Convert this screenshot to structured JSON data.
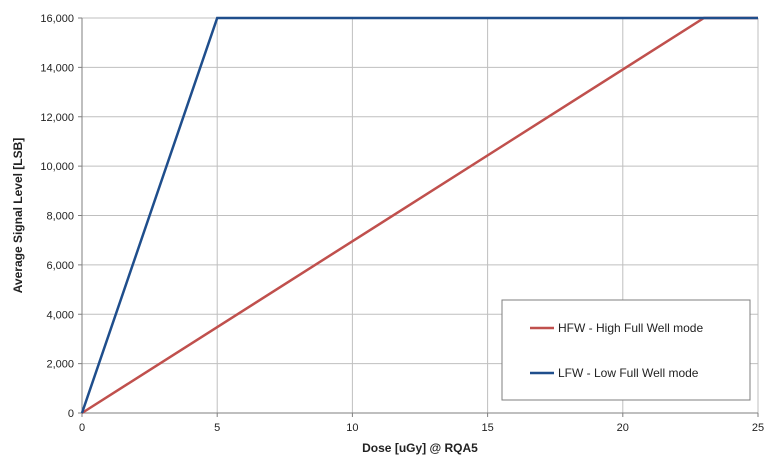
{
  "chart_data": {
    "type": "line",
    "xlabel": "Dose [uGy] @ RQA5",
    "ylabel": "Average Signal Level [LSB]",
    "xlim": [
      0,
      25
    ],
    "ylim": [
      0,
      16000
    ],
    "x_ticks": [
      0,
      5,
      10,
      15,
      20,
      25
    ],
    "y_ticks": [
      0,
      2000,
      4000,
      6000,
      8000,
      10000,
      12000,
      14000,
      16000
    ],
    "x_tick_labels": [
      "0",
      "5",
      "10",
      "15",
      "20",
      "25"
    ],
    "y_tick_labels": [
      "0",
      "2,000",
      "4,000",
      "6,000",
      "8,000",
      "10,000",
      "12,000",
      "14,000",
      "16,000"
    ],
    "grid": true,
    "legend_position": "bottom-right",
    "series": [
      {
        "name": "HFW - High Full Well mode",
        "color": "#c0504d",
        "points": [
          [
            0,
            0
          ],
          [
            23,
            16000
          ],
          [
            25,
            16000
          ]
        ]
      },
      {
        "name": "LFW - Low Full Well mode",
        "color": "#1f4e8c",
        "points": [
          [
            0,
            0
          ],
          [
            5,
            16000
          ],
          [
            25,
            16000
          ]
        ]
      }
    ]
  }
}
